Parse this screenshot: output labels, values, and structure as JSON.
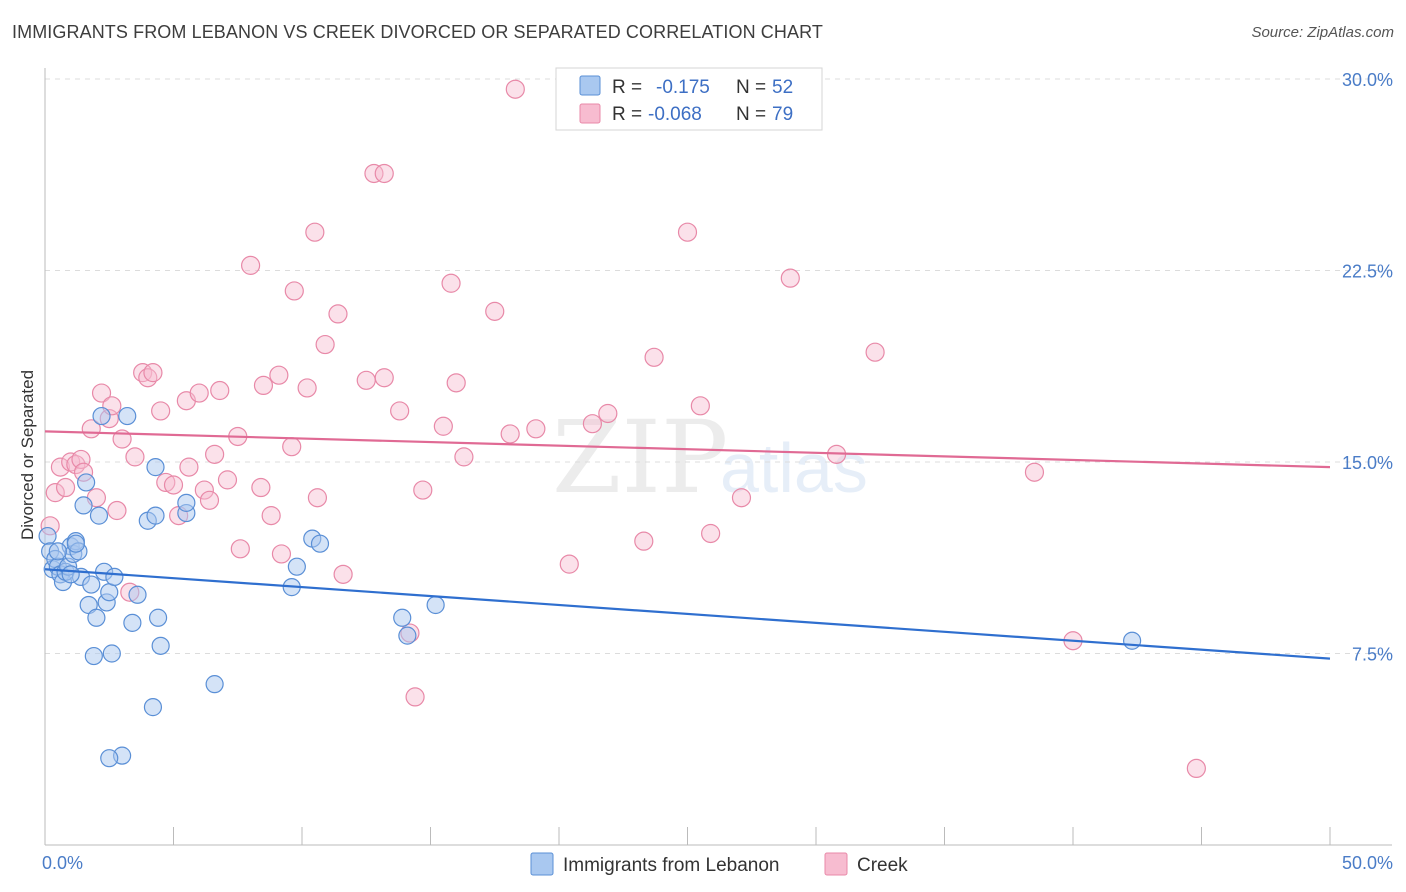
{
  "header": {
    "title": "IMMIGRANTS FROM LEBANON VS CREEK DIVORCED OR SEPARATED CORRELATION CHART",
    "source": "Source: ZipAtlas.com"
  },
  "watermark": {
    "zip": "ZIP",
    "atlas": "atlas"
  },
  "colors": {
    "lebanon_fill": "#a9c8f0",
    "lebanon_stroke": "#5a8fd6",
    "lebanon_line": "#2f6fcf",
    "creek_fill": "#f7bcd0",
    "creek_stroke": "#e889a8",
    "creek_line": "#e06a94",
    "tick_text": "#4a7cc7",
    "grid": "#dcdcdc"
  },
  "legend": {
    "rows": [
      {
        "r_label": "R =",
        "r_value": "-0.175",
        "n_label": "N =",
        "n_value": "52"
      },
      {
        "r_label": "R =",
        "r_value": "-0.068",
        "n_label": "N =",
        "n_value": "79"
      }
    ]
  },
  "chart_data": {
    "type": "scatter",
    "title": "IMMIGRANTS FROM LEBANON VS CREEK DIVORCED OR SEPARATED CORRELATION CHART",
    "xlabel": "",
    "ylabel": "Divorced or Separated",
    "x_unit": "%",
    "y_unit": "%",
    "xlim": [
      0,
      50
    ],
    "ylim": [
      0,
      30
    ],
    "x_tick_labels": [
      "0.0%",
      "50.0%"
    ],
    "y_ticks": [
      7.5,
      15.0,
      22.5,
      30.0
    ],
    "y_tick_labels": [
      "7.5%",
      "15.0%",
      "22.5%",
      "30.0%"
    ],
    "grid": "horizontal dashed",
    "legend_position": "top-center",
    "series": [
      {
        "name": "Immigrants from Lebanon",
        "r": -0.175,
        "n": 52,
        "trend": {
          "x": [
            0,
            50
          ],
          "y": [
            10.8,
            7.3
          ]
        },
        "points": [
          [
            0.1,
            12.1
          ],
          [
            0.2,
            11.5
          ],
          [
            0.3,
            10.8
          ],
          [
            0.4,
            11.2
          ],
          [
            0.5,
            10.9
          ],
          [
            0.6,
            10.6
          ],
          [
            0.7,
            10.3
          ],
          [
            0.8,
            10.7
          ],
          [
            0.9,
            10.9
          ],
          [
            1.0,
            11.7
          ],
          [
            1.1,
            11.4
          ],
          [
            1.2,
            11.9
          ],
          [
            1.3,
            11.5
          ],
          [
            1.4,
            10.5
          ],
          [
            1.5,
            13.3
          ],
          [
            1.6,
            14.2
          ],
          [
            1.7,
            9.4
          ],
          [
            1.8,
            10.2
          ],
          [
            1.9,
            7.4
          ],
          [
            2.0,
            8.9
          ],
          [
            2.1,
            12.9
          ],
          [
            2.2,
            16.8
          ],
          [
            2.3,
            10.7
          ],
          [
            2.4,
            9.5
          ],
          [
            2.5,
            9.9
          ],
          [
            2.6,
            7.5
          ],
          [
            2.7,
            10.5
          ],
          [
            3.2,
            16.8
          ],
          [
            3.0,
            3.5
          ],
          [
            2.5,
            3.4
          ],
          [
            3.4,
            8.7
          ],
          [
            3.6,
            9.8
          ],
          [
            4.0,
            12.7
          ],
          [
            4.2,
            5.4
          ],
          [
            4.3,
            12.9
          ],
          [
            4.4,
            8.9
          ],
          [
            4.3,
            14.8
          ],
          [
            4.5,
            7.8
          ],
          [
            5.5,
            13.0
          ],
          [
            5.5,
            13.4
          ],
          [
            6.6,
            6.3
          ],
          [
            9.6,
            10.1
          ],
          [
            9.8,
            10.9
          ],
          [
            10.4,
            12.0
          ],
          [
            10.7,
            11.8
          ],
          [
            13.9,
            8.9
          ],
          [
            14.1,
            8.2
          ],
          [
            15.2,
            9.4
          ],
          [
            42.3,
            8.0
          ],
          [
            0.5,
            11.5
          ],
          [
            1.0,
            10.6
          ],
          [
            1.2,
            11.8
          ]
        ]
      },
      {
        "name": "Creek",
        "r": -0.068,
        "n": 79,
        "trend": {
          "x": [
            0,
            50
          ],
          "y": [
            16.2,
            14.8
          ]
        },
        "points": [
          [
            0.2,
            12.5
          ],
          [
            0.4,
            13.8
          ],
          [
            0.6,
            14.8
          ],
          [
            0.8,
            14.0
          ],
          [
            1.0,
            15.0
          ],
          [
            1.2,
            14.9
          ],
          [
            1.4,
            15.1
          ],
          [
            1.5,
            14.6
          ],
          [
            1.8,
            16.3
          ],
          [
            2.0,
            13.6
          ],
          [
            2.2,
            17.7
          ],
          [
            2.5,
            16.7
          ],
          [
            2.6,
            17.2
          ],
          [
            2.8,
            13.1
          ],
          [
            3.0,
            15.9
          ],
          [
            3.3,
            9.9
          ],
          [
            3.5,
            15.2
          ],
          [
            3.8,
            18.5
          ],
          [
            4.0,
            18.3
          ],
          [
            4.2,
            18.5
          ],
          [
            4.5,
            17.0
          ],
          [
            4.7,
            14.2
          ],
          [
            5.0,
            14.1
          ],
          [
            5.2,
            12.9
          ],
          [
            5.5,
            17.4
          ],
          [
            5.6,
            14.8
          ],
          [
            6.0,
            17.7
          ],
          [
            6.2,
            13.9
          ],
          [
            6.4,
            13.5
          ],
          [
            6.6,
            15.3
          ],
          [
            6.8,
            17.8
          ],
          [
            7.1,
            14.3
          ],
          [
            7.5,
            16.0
          ],
          [
            7.6,
            11.6
          ],
          [
            8.0,
            22.7
          ],
          [
            8.4,
            14.0
          ],
          [
            8.5,
            18.0
          ],
          [
            8.8,
            12.9
          ],
          [
            9.1,
            18.4
          ],
          [
            9.2,
            11.4
          ],
          [
            9.6,
            15.6
          ],
          [
            9.7,
            21.7
          ],
          [
            10.2,
            17.9
          ],
          [
            10.5,
            24.0
          ],
          [
            10.6,
            13.6
          ],
          [
            10.9,
            19.6
          ],
          [
            11.4,
            20.8
          ],
          [
            11.6,
            10.6
          ],
          [
            12.5,
            18.2
          ],
          [
            12.8,
            26.3
          ],
          [
            13.2,
            18.3
          ],
          [
            13.8,
            17.0
          ],
          [
            14.2,
            8.3
          ],
          [
            14.4,
            5.8
          ],
          [
            14.7,
            13.9
          ],
          [
            15.5,
            16.4
          ],
          [
            15.8,
            22.0
          ],
          [
            16.0,
            18.1
          ],
          [
            16.3,
            15.2
          ],
          [
            17.5,
            20.9
          ],
          [
            18.1,
            16.1
          ],
          [
            18.3,
            29.6
          ],
          [
            19.1,
            16.3
          ],
          [
            20.4,
            11.0
          ],
          [
            21.3,
            16.5
          ],
          [
            21.9,
            16.9
          ],
          [
            23.3,
            11.9
          ],
          [
            23.7,
            19.1
          ],
          [
            25.0,
            24.0
          ],
          [
            25.5,
            17.2
          ],
          [
            25.9,
            12.2
          ],
          [
            27.1,
            13.6
          ],
          [
            29.0,
            22.2
          ],
          [
            30.8,
            15.3
          ],
          [
            32.3,
            19.3
          ],
          [
            38.5,
            14.6
          ],
          [
            40.0,
            8.0
          ],
          [
            44.8,
            3.0
          ],
          [
            13.2,
            26.3
          ]
        ]
      }
    ]
  },
  "bottom_legend": {
    "items": [
      {
        "label": "Immigrants from Lebanon"
      },
      {
        "label": "Creek"
      }
    ]
  }
}
